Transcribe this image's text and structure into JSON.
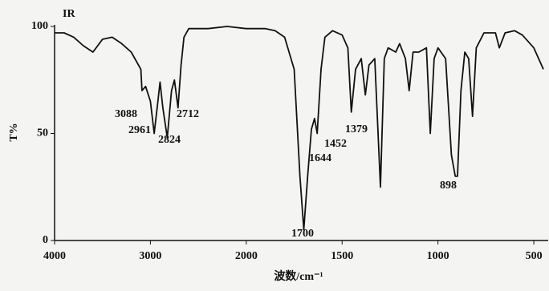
{
  "chart_data": {
    "type": "line",
    "title": "IR",
    "ylabel": "T%",
    "xlabel": "波数/cm⁻¹",
    "x": [
      4000,
      3900,
      3800,
      3700,
      3600,
      3500,
      3400,
      3300,
      3200,
      3100,
      3088,
      3050,
      3000,
      2961,
      2930,
      2900,
      2870,
      2824,
      2780,
      2750,
      2712,
      2680,
      2650,
      2600,
      2400,
      2200,
      2000,
      1900,
      1850,
      1800,
      1750,
      1720,
      1700,
      1680,
      1660,
      1644,
      1630,
      1610,
      1590,
      1550,
      1500,
      1470,
      1452,
      1430,
      1400,
      1379,
      1360,
      1330,
      1300,
      1280,
      1260,
      1220,
      1200,
      1170,
      1150,
      1130,
      1100,
      1060,
      1040,
      1020,
      1000,
      960,
      930,
      910,
      898,
      880,
      860,
      840,
      820,
      800,
      760,
      700,
      680,
      650,
      600,
      560,
      500,
      450
    ],
    "values": [
      97,
      97,
      95,
      91,
      88,
      94,
      95,
      92,
      88,
      80,
      70,
      72,
      65,
      50,
      62,
      74,
      62,
      48,
      70,
      75,
      62,
      82,
      95,
      99,
      99,
      100,
      99,
      99,
      98,
      95,
      80,
      30,
      5,
      30,
      52,
      57,
      50,
      80,
      95,
      98,
      96,
      90,
      60,
      80,
      85,
      68,
      82,
      85,
      25,
      85,
      90,
      88,
      92,
      85,
      70,
      88,
      88,
      90,
      50,
      85,
      90,
      85,
      40,
      30,
      30,
      70,
      88,
      85,
      58,
      90,
      97,
      97,
      90,
      97,
      98,
      96,
      90,
      80
    ],
    "color": "#111111",
    "xlim": [
      4000,
      425
    ],
    "ylim": [
      0,
      100
    ],
    "xticks": [
      4000,
      3000,
      2000,
      1500,
      1000,
      500
    ],
    "yticks": [
      0,
      50,
      100
    ],
    "x_scale_break": 2000,
    "x_scale_ratio": 2,
    "annotations": [
      "3088",
      "2961",
      "2824",
      "2712",
      "1700",
      "1644",
      "1452",
      "1379",
      "898"
    ]
  }
}
